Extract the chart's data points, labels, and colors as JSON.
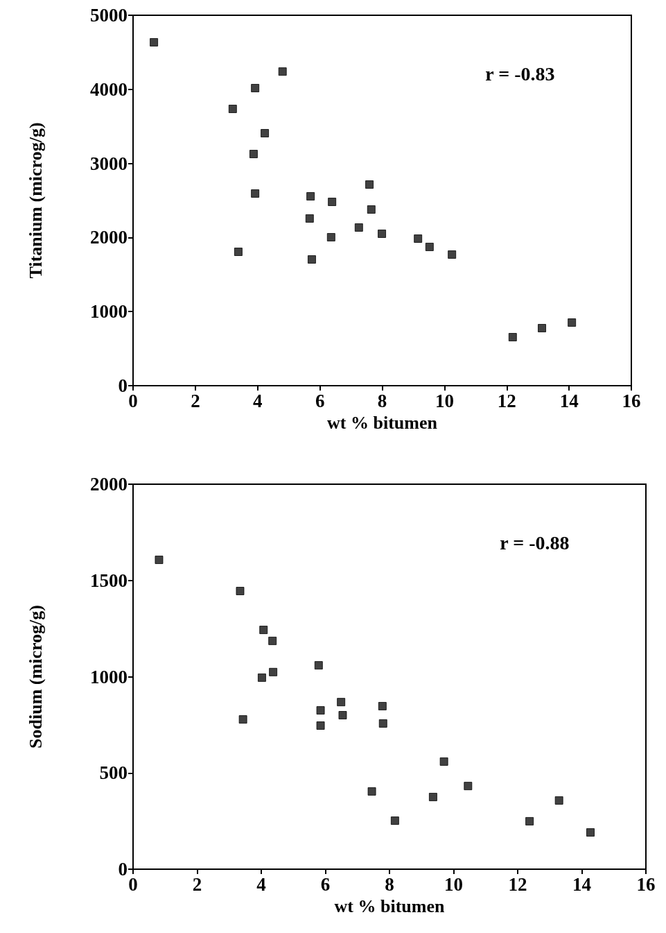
{
  "chart_data": [
    {
      "type": "scatter",
      "xlabel": "wt % bitumen",
      "ylabel": "Titanium (microg/g)",
      "annotations": [
        "r = -0.83"
      ],
      "marker": "square",
      "grid": false,
      "xlim": [
        0,
        16
      ],
      "xticks": [
        0,
        2,
        4,
        6,
        8,
        10,
        12,
        14,
        16
      ],
      "ylim": [
        0,
        5000
      ],
      "yticks": [
        0,
        1000,
        2000,
        3000,
        4000,
        5000
      ],
      "series": [
        {
          "color": "#111111",
          "x": [
            0.67,
            3.92,
            3.2,
            4.8,
            4.23,
            3.87,
            3.92,
            3.38,
            5.7,
            5.67,
            6.39,
            6.36,
            5.74,
            7.59,
            7.65,
            7.25,
            7.99,
            9.15,
            9.52,
            10.24,
            12.19,
            13.13,
            14.09
          ],
          "values": [
            4635,
            4017,
            3736,
            4240,
            3408,
            3127,
            2594,
            1807,
            2556,
            2257,
            2481,
            2004,
            1704,
            2715,
            2378,
            2135,
            2051,
            1985,
            1873,
            1770,
            655,
            777,
            852
          ]
        }
      ]
    },
    {
      "type": "scatter",
      "xlabel": "wt % bitumen",
      "ylabel": "Sodium (microg/g)",
      "annotations": [
        "r = -0.88"
      ],
      "marker": "square",
      "grid": false,
      "xlim": [
        0,
        16
      ],
      "xticks": [
        0,
        2,
        4,
        6,
        8,
        10,
        12,
        14,
        16
      ],
      "ylim": [
        0,
        2000
      ],
      "yticks": [
        0,
        500,
        1000,
        1500,
        2000
      ],
      "series": [
        {
          "color": "#111111",
          "x": [
            0.81,
            3.34,
            3.43,
            4.07,
            4.35,
            4.02,
            4.37,
            5.79,
            5.85,
            5.85,
            6.49,
            6.54,
            7.78,
            7.8,
            7.45,
            8.17,
            9.7,
            9.36,
            10.45,
            12.37,
            13.29,
            14.27
          ],
          "values": [
            1607,
            1445,
            778,
            1243,
            1186,
            995,
            1024,
            1059,
            825,
            746,
            868,
            800,
            847,
            757,
            404,
            252,
            559,
            375,
            432,
            249,
            357,
            191
          ]
        }
      ]
    }
  ]
}
